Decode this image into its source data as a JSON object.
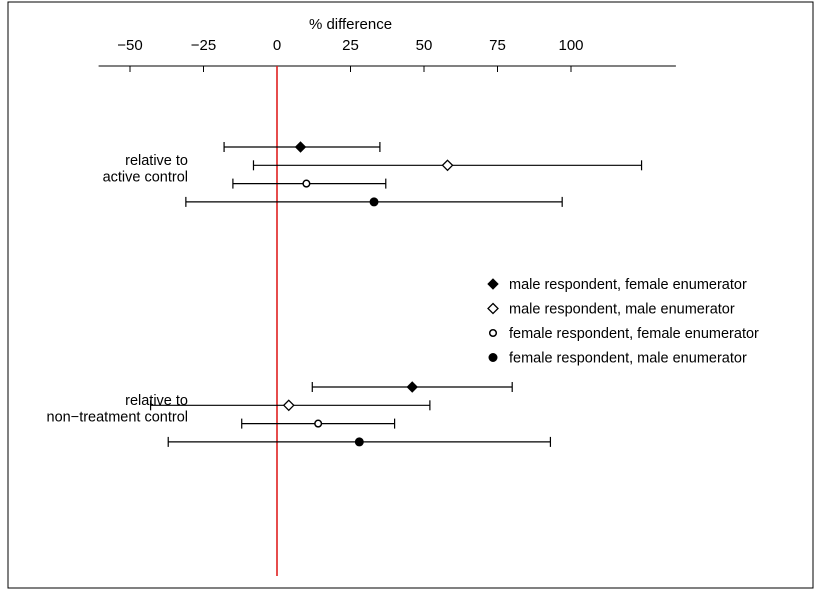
{
  "chart_data": {
    "type": "scatter",
    "xlabel": "% difference",
    "xlim": [
      -60,
      135
    ],
    "x_ticks": [
      -50,
      -25,
      0,
      25,
      50,
      75,
      100
    ],
    "x_tick_labels": [
      "−50",
      "−25",
      "0",
      "25",
      "50",
      "75",
      "100"
    ],
    "reference_line": {
      "x": 0,
      "color": "#e02020"
    },
    "groups": [
      {
        "label_lines": [
          "relative to",
          "active control"
        ]
      },
      {
        "label_lines": [
          "relative to",
          "non−treatment control"
        ]
      }
    ],
    "legend": {
      "placement": "right"
    },
    "series": [
      {
        "name": "male respondent, female enumerator",
        "marker": "filled-diamond",
        "points": [
          {
            "group": 0,
            "estimate": 8,
            "lower": -18,
            "upper": 35
          },
          {
            "group": 1,
            "estimate": 46,
            "lower": 12,
            "upper": 80
          }
        ]
      },
      {
        "name": "male respondent, male enumerator",
        "marker": "open-diamond",
        "points": [
          {
            "group": 0,
            "estimate": 58,
            "lower": -8,
            "upper": 124
          },
          {
            "group": 1,
            "estimate": 4,
            "lower": -43,
            "upper": 52
          }
        ]
      },
      {
        "name": "female respondent, female enumerator",
        "marker": "open-circle",
        "points": [
          {
            "group": 0,
            "estimate": 10,
            "lower": -15,
            "upper": 37
          },
          {
            "group": 1,
            "estimate": 14,
            "lower": -12,
            "upper": 40
          }
        ]
      },
      {
        "name": "female respondent, male enumerator",
        "marker": "filled-circle",
        "points": [
          {
            "group": 0,
            "estimate": 33,
            "lower": -31,
            "upper": 97
          },
          {
            "group": 1,
            "estimate": 28,
            "lower": -37,
            "upper": 93
          }
        ]
      }
    ]
  }
}
